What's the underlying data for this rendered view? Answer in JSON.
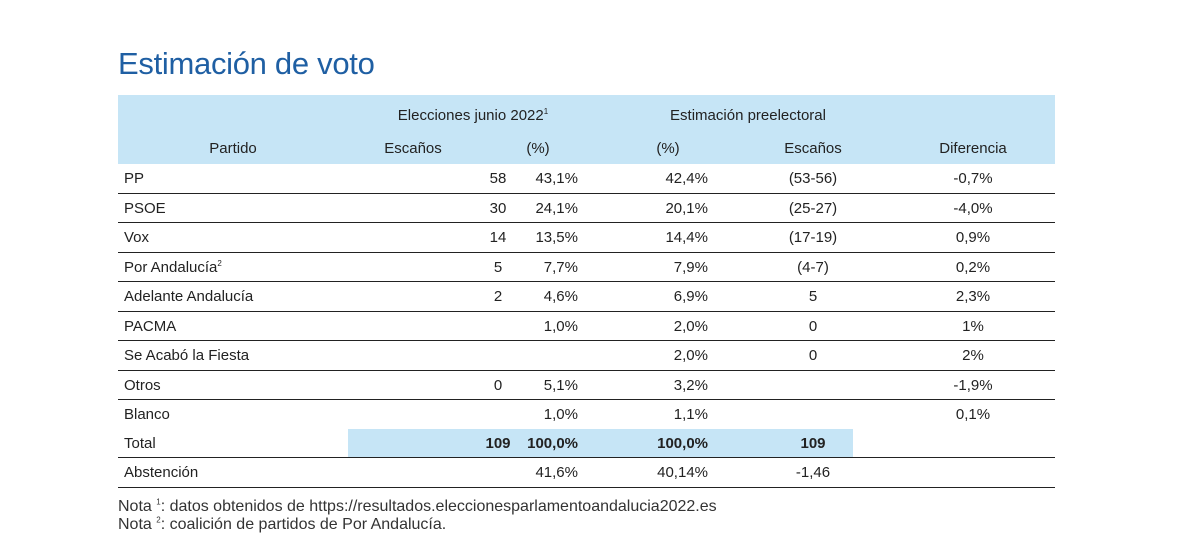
{
  "title": "Estimación de voto",
  "header": {
    "group1": "Elecciones junio 2022",
    "group1_sup": "1",
    "group2": "Estimación preelectoral",
    "partido": "Partido",
    "escanos1": "Escaños",
    "pct1": "(%)",
    "pct2": "(%)",
    "escanos2": "Escaños",
    "diferencia": "Diferencia"
  },
  "rows": [
    {
      "party": "PP",
      "sup": "",
      "esc1": "58",
      "pct1": "43,1%",
      "pct2": "42,4%",
      "esc2": "(53-56)",
      "dif": "-0,7%"
    },
    {
      "party": "PSOE",
      "sup": "",
      "esc1": "30",
      "pct1": "24,1%",
      "pct2": "20,1%",
      "esc2": "(25-27)",
      "dif": "-4,0%"
    },
    {
      "party": "Vox",
      "sup": "",
      "esc1": "14",
      "pct1": "13,5%",
      "pct2": "14,4%",
      "esc2": "(17-19)",
      "dif": "0,9%"
    },
    {
      "party": "Por Andalucía",
      "sup": "2",
      "esc1": "5",
      "pct1": "7,7%",
      "pct2": "7,9%",
      "esc2": "(4-7)",
      "dif": "0,2%"
    },
    {
      "party": "Adelante Andalucía",
      "sup": "",
      "esc1": "2",
      "pct1": "4,6%",
      "pct2": "6,9%",
      "esc2": "5",
      "dif": "2,3%"
    },
    {
      "party": "PACMA",
      "sup": "",
      "esc1": "",
      "pct1": "1,0%",
      "pct2": "2,0%",
      "esc2": "0",
      "dif": "1%"
    },
    {
      "party": "Se Acabó la Fiesta",
      "sup": "",
      "esc1": "",
      "pct1": "",
      "pct2": "2,0%",
      "esc2": "0",
      "dif": "2%"
    },
    {
      "party": "Otros",
      "sup": "",
      "esc1": "0",
      "pct1": "5,1%",
      "pct2": "3,2%",
      "esc2": "",
      "dif": "-1,9%"
    },
    {
      "party": "Blanco",
      "sup": "",
      "esc1": "",
      "pct1": "1,0%",
      "pct2": "1,1%",
      "esc2": "",
      "dif": "0,1%"
    }
  ],
  "total": {
    "party": "Total",
    "esc1": "109",
    "pct1": "100,0%",
    "pct2": "100,0%",
    "esc2": "109",
    "dif": ""
  },
  "abstencion": {
    "party": "Abstención",
    "esc1": "",
    "pct1": "41,6%",
    "pct2": "40,14%",
    "esc2": "-1,46",
    "dif": ""
  },
  "notes": [
    {
      "prefix": "Nota",
      "sup": "1",
      "text": ": datos obtenidos de https://resultados.eleccionesparlamentoandalucia2022.es"
    },
    {
      "prefix": "Nota",
      "sup": "2",
      "text": ": coalición de partidos de Por Andalucía."
    }
  ]
}
